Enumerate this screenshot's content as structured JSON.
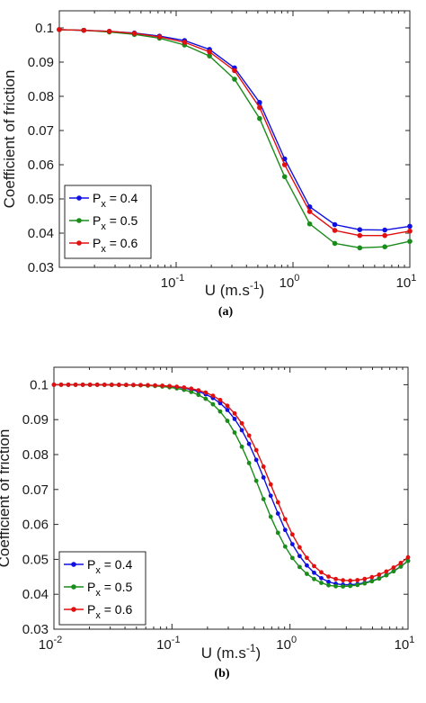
{
  "chart_data": [
    {
      "type": "line",
      "caption": "(a)",
      "xlabel": "U (m.s",
      "xlabel_sup": "-1",
      "xlabel_end": ")",
      "ylabel": "Coefficient of friction",
      "xscale": "log",
      "xlim": [
        0.01,
        10
      ],
      "ylim": [
        0.03,
        0.105
      ],
      "yticks": [
        0.03,
        0.04,
        0.05,
        0.06,
        0.07,
        0.08,
        0.09,
        0.1
      ],
      "ytick_labels": [
        "0.03",
        "0.04",
        "0.05",
        "0.06",
        "0.07",
        "0.08",
        "0.09",
        "0.1"
      ],
      "xticks": [
        {
          "value": 0.1,
          "base": "10",
          "exp": "-1"
        },
        {
          "value": 1,
          "base": "10",
          "exp": "0"
        },
        {
          "value": 10,
          "base": "10",
          "exp": "1"
        }
      ],
      "grid": false,
      "legend_position": "bottom-left",
      "x": [
        0.01,
        0.0162,
        0.0268,
        0.0439,
        0.072,
        0.118,
        0.193,
        0.316,
        0.518,
        0.848,
        1.39,
        2.28,
        3.73,
        6.11,
        10
      ],
      "series": [
        {
          "name_base": "P",
          "name_sub": "x",
          "name_rest": " = 0.4",
          "color": "#1010e0",
          "values": [
            0.0995,
            0.0993,
            0.099,
            0.0985,
            0.0976,
            0.0963,
            0.0937,
            0.0883,
            0.0782,
            0.0617,
            0.0477,
            0.0425,
            0.041,
            0.0409,
            0.042
          ]
        },
        {
          "name_base": "P",
          "name_sub": "x",
          "name_rest": " = 0.5",
          "color": "#1a8c1a",
          "values": [
            0.0995,
            0.0993,
            0.0988,
            0.0981,
            0.097,
            0.095,
            0.0918,
            0.085,
            0.0735,
            0.0565,
            0.0427,
            0.037,
            0.0357,
            0.036,
            0.0376
          ]
        },
        {
          "name_base": "P",
          "name_sub": "x",
          "name_rest": " = 0.6",
          "color": "#e01010",
          "values": [
            0.0995,
            0.0993,
            0.099,
            0.0984,
            0.0974,
            0.0958,
            0.093,
            0.0875,
            0.0767,
            0.06,
            0.0463,
            0.0408,
            0.0393,
            0.0393,
            0.0406
          ]
        }
      ]
    },
    {
      "type": "line",
      "caption": "(b)",
      "xlabel": "U (m.s",
      "xlabel_sup": "-1",
      "xlabel_end": ")",
      "ylabel": "Coefficient of friction",
      "xscale": "log",
      "xlim": [
        0.01,
        10
      ],
      "ylim": [
        0.03,
        0.105
      ],
      "yticks": [
        0.03,
        0.04,
        0.05,
        0.06,
        0.07,
        0.08,
        0.09,
        0.1
      ],
      "ytick_labels": [
        "0.03",
        "0.04",
        "0.05",
        "0.06",
        "0.07",
        "0.08",
        "0.09",
        "0.1"
      ],
      "xticks": [
        {
          "value": 0.01,
          "base": "10",
          "exp": "-2"
        },
        {
          "value": 0.1,
          "base": "10",
          "exp": "-1"
        },
        {
          "value": 1,
          "base": "10",
          "exp": "0"
        },
        {
          "value": 10,
          "base": "10",
          "exp": "1"
        }
      ],
      "grid": false,
      "legend_position": "bottom-left",
      "x_log_start": -2,
      "x_log_end": 1,
      "x_count": 50,
      "series": [
        {
          "name_base": "P",
          "name_sub": "x",
          "name_rest": " = 0.4",
          "color": "#1010e0",
          "u0": 0.65,
          "k": 2.5,
          "fmin": 0.0405,
          "fmax": 0.1,
          "rise": 0.003
        },
        {
          "name_base": "P",
          "name_sub": "x",
          "name_rest": " = 0.5",
          "color": "#1a8c1a",
          "u0": 0.55,
          "k": 2.5,
          "fmin": 0.0405,
          "fmax": 0.1,
          "rise": 0.003
        },
        {
          "name_base": "P",
          "name_sub": "x",
          "name_rest": " = 0.6",
          "color": "#e01010",
          "u0": 0.7,
          "k": 2.5,
          "fmin": 0.0415,
          "fmax": 0.1,
          "rise": 0.003
        }
      ]
    }
  ]
}
